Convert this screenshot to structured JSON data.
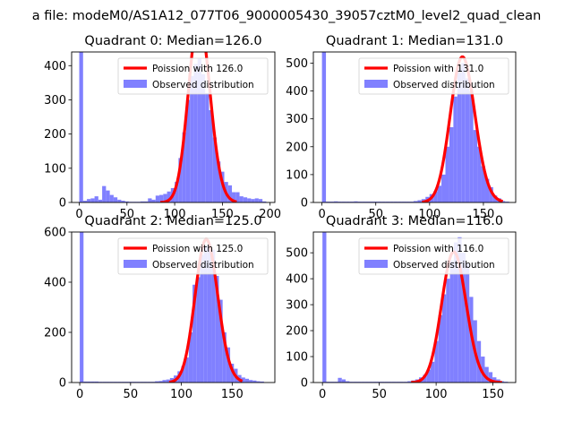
{
  "figure": {
    "suptitle": "a file: modeM0/AS1A12_077T06_9000005430_39057cztM0_level2_quad_clean"
  },
  "chart_data": [
    {
      "type": "bar",
      "title": "Quadrant 0: Median=126.0",
      "xlim": [
        -8,
        205
      ],
      "ylim": [
        0,
        440
      ],
      "xticks": [
        0,
        50,
        100,
        150,
        200
      ],
      "yticks": [
        0,
        100,
        200,
        300,
        400
      ],
      "legend_position": "top-right",
      "bar_color": "#8080ff",
      "line_color": "#ff0000",
      "hist": {
        "name": "Observed distribution",
        "bin_width": 4,
        "bins": [
          [
            0,
            440
          ],
          [
            4,
            5
          ],
          [
            8,
            10
          ],
          [
            12,
            12
          ],
          [
            16,
            18
          ],
          [
            20,
            8
          ],
          [
            24,
            48
          ],
          [
            28,
            35
          ],
          [
            32,
            22
          ],
          [
            36,
            15
          ],
          [
            40,
            8
          ],
          [
            44,
            5
          ],
          [
            48,
            3
          ],
          [
            52,
            2
          ],
          [
            56,
            2
          ],
          [
            60,
            2
          ],
          [
            64,
            3
          ],
          [
            68,
            3
          ],
          [
            72,
            12
          ],
          [
            76,
            8
          ],
          [
            80,
            20
          ],
          [
            84,
            22
          ],
          [
            88,
            25
          ],
          [
            92,
            32
          ],
          [
            96,
            42
          ],
          [
            100,
            60
          ],
          [
            104,
            130
          ],
          [
            108,
            205
          ],
          [
            112,
            300
          ],
          [
            116,
            370
          ],
          [
            120,
            405
          ],
          [
            124,
            420
          ],
          [
            128,
            375
          ],
          [
            132,
            320
          ],
          [
            136,
            270
          ],
          [
            140,
            190
          ],
          [
            144,
            120
          ],
          [
            148,
            90
          ],
          [
            152,
            60
          ],
          [
            156,
            50
          ],
          [
            160,
            30
          ],
          [
            164,
            30
          ],
          [
            168,
            18
          ],
          [
            172,
            15
          ],
          [
            176,
            12
          ],
          [
            180,
            10
          ],
          [
            184,
            12
          ],
          [
            188,
            10
          ],
          [
            192,
            3
          ]
        ]
      },
      "poisson": {
        "name": "Poission with 126.0",
        "x_start": 85,
        "x_end": 165,
        "mean": 126.0,
        "scale": 15200
      }
    },
    {
      "type": "bar",
      "title": "Quadrant 1: Median=131.0",
      "xlim": [
        -8,
        180
      ],
      "ylim": [
        0,
        540
      ],
      "xticks": [
        0,
        50,
        100,
        150
      ],
      "yticks": [
        0,
        100,
        200,
        300,
        400,
        500
      ],
      "legend_position": "top-right",
      "bar_color": "#8080ff",
      "line_color": "#ff0000",
      "hist": {
        "name": "Observed distribution",
        "bin_width": 3.7,
        "bins": [
          [
            0,
            540
          ],
          [
            3.7,
            3
          ],
          [
            7.4,
            3
          ],
          [
            11.1,
            4
          ],
          [
            14.8,
            3
          ],
          [
            18.5,
            3
          ],
          [
            22.2,
            3
          ],
          [
            25.9,
            3
          ],
          [
            29.6,
            4
          ],
          [
            33.3,
            3
          ],
          [
            37,
            3
          ],
          [
            40.7,
            3
          ],
          [
            44.4,
            3
          ],
          [
            48.1,
            3
          ],
          [
            51.8,
            3
          ],
          [
            55.5,
            3
          ],
          [
            59.2,
            3
          ],
          [
            62.9,
            3
          ],
          [
            66.6,
            3
          ],
          [
            70.3,
            3
          ],
          [
            74,
            3
          ],
          [
            77.7,
            3
          ],
          [
            81.4,
            3
          ],
          [
            85.1,
            5
          ],
          [
            88.8,
            8
          ],
          [
            92.5,
            12
          ],
          [
            96.2,
            20
          ],
          [
            99.9,
            30
          ],
          [
            103.6,
            40
          ],
          [
            107.3,
            60
          ],
          [
            111,
            100
          ],
          [
            114.7,
            200
          ],
          [
            118.4,
            270
          ],
          [
            122.1,
            380
          ],
          [
            125.8,
            480
          ],
          [
            129.5,
            500
          ],
          [
            133.2,
            445
          ],
          [
            136.9,
            400
          ],
          [
            140.6,
            260
          ],
          [
            144.3,
            200
          ],
          [
            148,
            130
          ],
          [
            151.7,
            85
          ],
          [
            155.4,
            55
          ],
          [
            159.1,
            25
          ],
          [
            162.8,
            15
          ],
          [
            166.5,
            5
          ],
          [
            170.2,
            3
          ]
        ]
      },
      "poisson": {
        "name": "Poission with 131.0",
        "x_start": 93,
        "x_end": 168,
        "mean": 131.0,
        "scale": 15000
      }
    },
    {
      "type": "bar",
      "title": "Quadrant 2: Median=125.0",
      "xlim": [
        -8,
        192
      ],
      "ylim": [
        0,
        600
      ],
      "xticks": [
        0,
        50,
        100,
        150
      ],
      "yticks": [
        0,
        200,
        400,
        600
      ],
      "legend_position": "top-right",
      "bar_color": "#8080ff",
      "line_color": "#ff0000",
      "hist": {
        "name": "Observed distribution",
        "bin_width": 3.7,
        "bins": [
          [
            0,
            600
          ],
          [
            3.7,
            4
          ],
          [
            7.4,
            4
          ],
          [
            11.1,
            4
          ],
          [
            14.8,
            4
          ],
          [
            18.5,
            3
          ],
          [
            22.2,
            3
          ],
          [
            25.9,
            3
          ],
          [
            29.6,
            3
          ],
          [
            33.3,
            3
          ],
          [
            37,
            3
          ],
          [
            40.7,
            3
          ],
          [
            44.4,
            3
          ],
          [
            48.1,
            3
          ],
          [
            51.8,
            3
          ],
          [
            55.5,
            3
          ],
          [
            59.2,
            3
          ],
          [
            62.9,
            3
          ],
          [
            66.6,
            3
          ],
          [
            70.3,
            3
          ],
          [
            74,
            5
          ],
          [
            77.7,
            6
          ],
          [
            81.4,
            10
          ],
          [
            85.1,
            12
          ],
          [
            88.8,
            18
          ],
          [
            92.5,
            28
          ],
          [
            96.2,
            45
          ],
          [
            99.9,
            65
          ],
          [
            103.6,
            100
          ],
          [
            107.3,
            200
          ],
          [
            111,
            390
          ],
          [
            114.7,
            420
          ],
          [
            118.4,
            510
          ],
          [
            122.1,
            545
          ],
          [
            125.8,
            550
          ],
          [
            129.5,
            530
          ],
          [
            133.2,
            425
          ],
          [
            136.9,
            330
          ],
          [
            140.6,
            200
          ],
          [
            144.3,
            140
          ],
          [
            148,
            75
          ],
          [
            151.7,
            55
          ],
          [
            155.4,
            30
          ],
          [
            159.1,
            20
          ],
          [
            162.8,
            15
          ],
          [
            166.5,
            10
          ],
          [
            170.2,
            8
          ],
          [
            173.9,
            5
          ],
          [
            177.6,
            4
          ]
        ]
      },
      "poisson": {
        "name": "Poission with 125.0",
        "x_start": 88,
        "x_end": 160,
        "mean": 125.0,
        "scale": 16000
      }
    },
    {
      "type": "bar",
      "title": "Quadrant 3: Median=116.0",
      "xlim": [
        -8,
        170
      ],
      "ylim": [
        0,
        580
      ],
      "xticks": [
        0,
        50,
        100,
        150
      ],
      "yticks": [
        0,
        100,
        200,
        300,
        400,
        500
      ],
      "legend_position": "top-right",
      "bar_color": "#8080ff",
      "line_color": "#ff0000",
      "hist": {
        "name": "Observed distribution",
        "bin_width": 3.4,
        "bins": [
          [
            0,
            580
          ],
          [
            3.4,
            3
          ],
          [
            6.8,
            3
          ],
          [
            10.2,
            3
          ],
          [
            13.6,
            18
          ],
          [
            17,
            12
          ],
          [
            20.4,
            5
          ],
          [
            23.8,
            3
          ],
          [
            27.2,
            3
          ],
          [
            30.6,
            3
          ],
          [
            34,
            3
          ],
          [
            37.4,
            3
          ],
          [
            40.8,
            3
          ],
          [
            44.2,
            3
          ],
          [
            47.6,
            3
          ],
          [
            51,
            3
          ],
          [
            54.4,
            3
          ],
          [
            57.8,
            3
          ],
          [
            61.2,
            3
          ],
          [
            64.6,
            3
          ],
          [
            68,
            3
          ],
          [
            71.4,
            3
          ],
          [
            74.8,
            5
          ],
          [
            78.2,
            8
          ],
          [
            81.6,
            12
          ],
          [
            85,
            20
          ],
          [
            88.4,
            30
          ],
          [
            91.8,
            50
          ],
          [
            95.2,
            80
          ],
          [
            98.6,
            160
          ],
          [
            102,
            260
          ],
          [
            105.4,
            340
          ],
          [
            108.8,
            400
          ],
          [
            112.2,
            470
          ],
          [
            115.6,
            540
          ],
          [
            119,
            560
          ],
          [
            122.4,
            500
          ],
          [
            125.8,
            460
          ],
          [
            129.2,
            330
          ],
          [
            132.6,
            240
          ],
          [
            136,
            160
          ],
          [
            139.4,
            100
          ],
          [
            142.8,
            60
          ],
          [
            146.2,
            40
          ],
          [
            149.6,
            20
          ],
          [
            153,
            12
          ],
          [
            156.4,
            5
          ],
          [
            159.8,
            3
          ]
        ]
      },
      "poisson": {
        "name": "Poission with 116.0",
        "x_start": 78,
        "x_end": 158,
        "mean": 116.0,
        "scale": 13600
      }
    }
  ]
}
